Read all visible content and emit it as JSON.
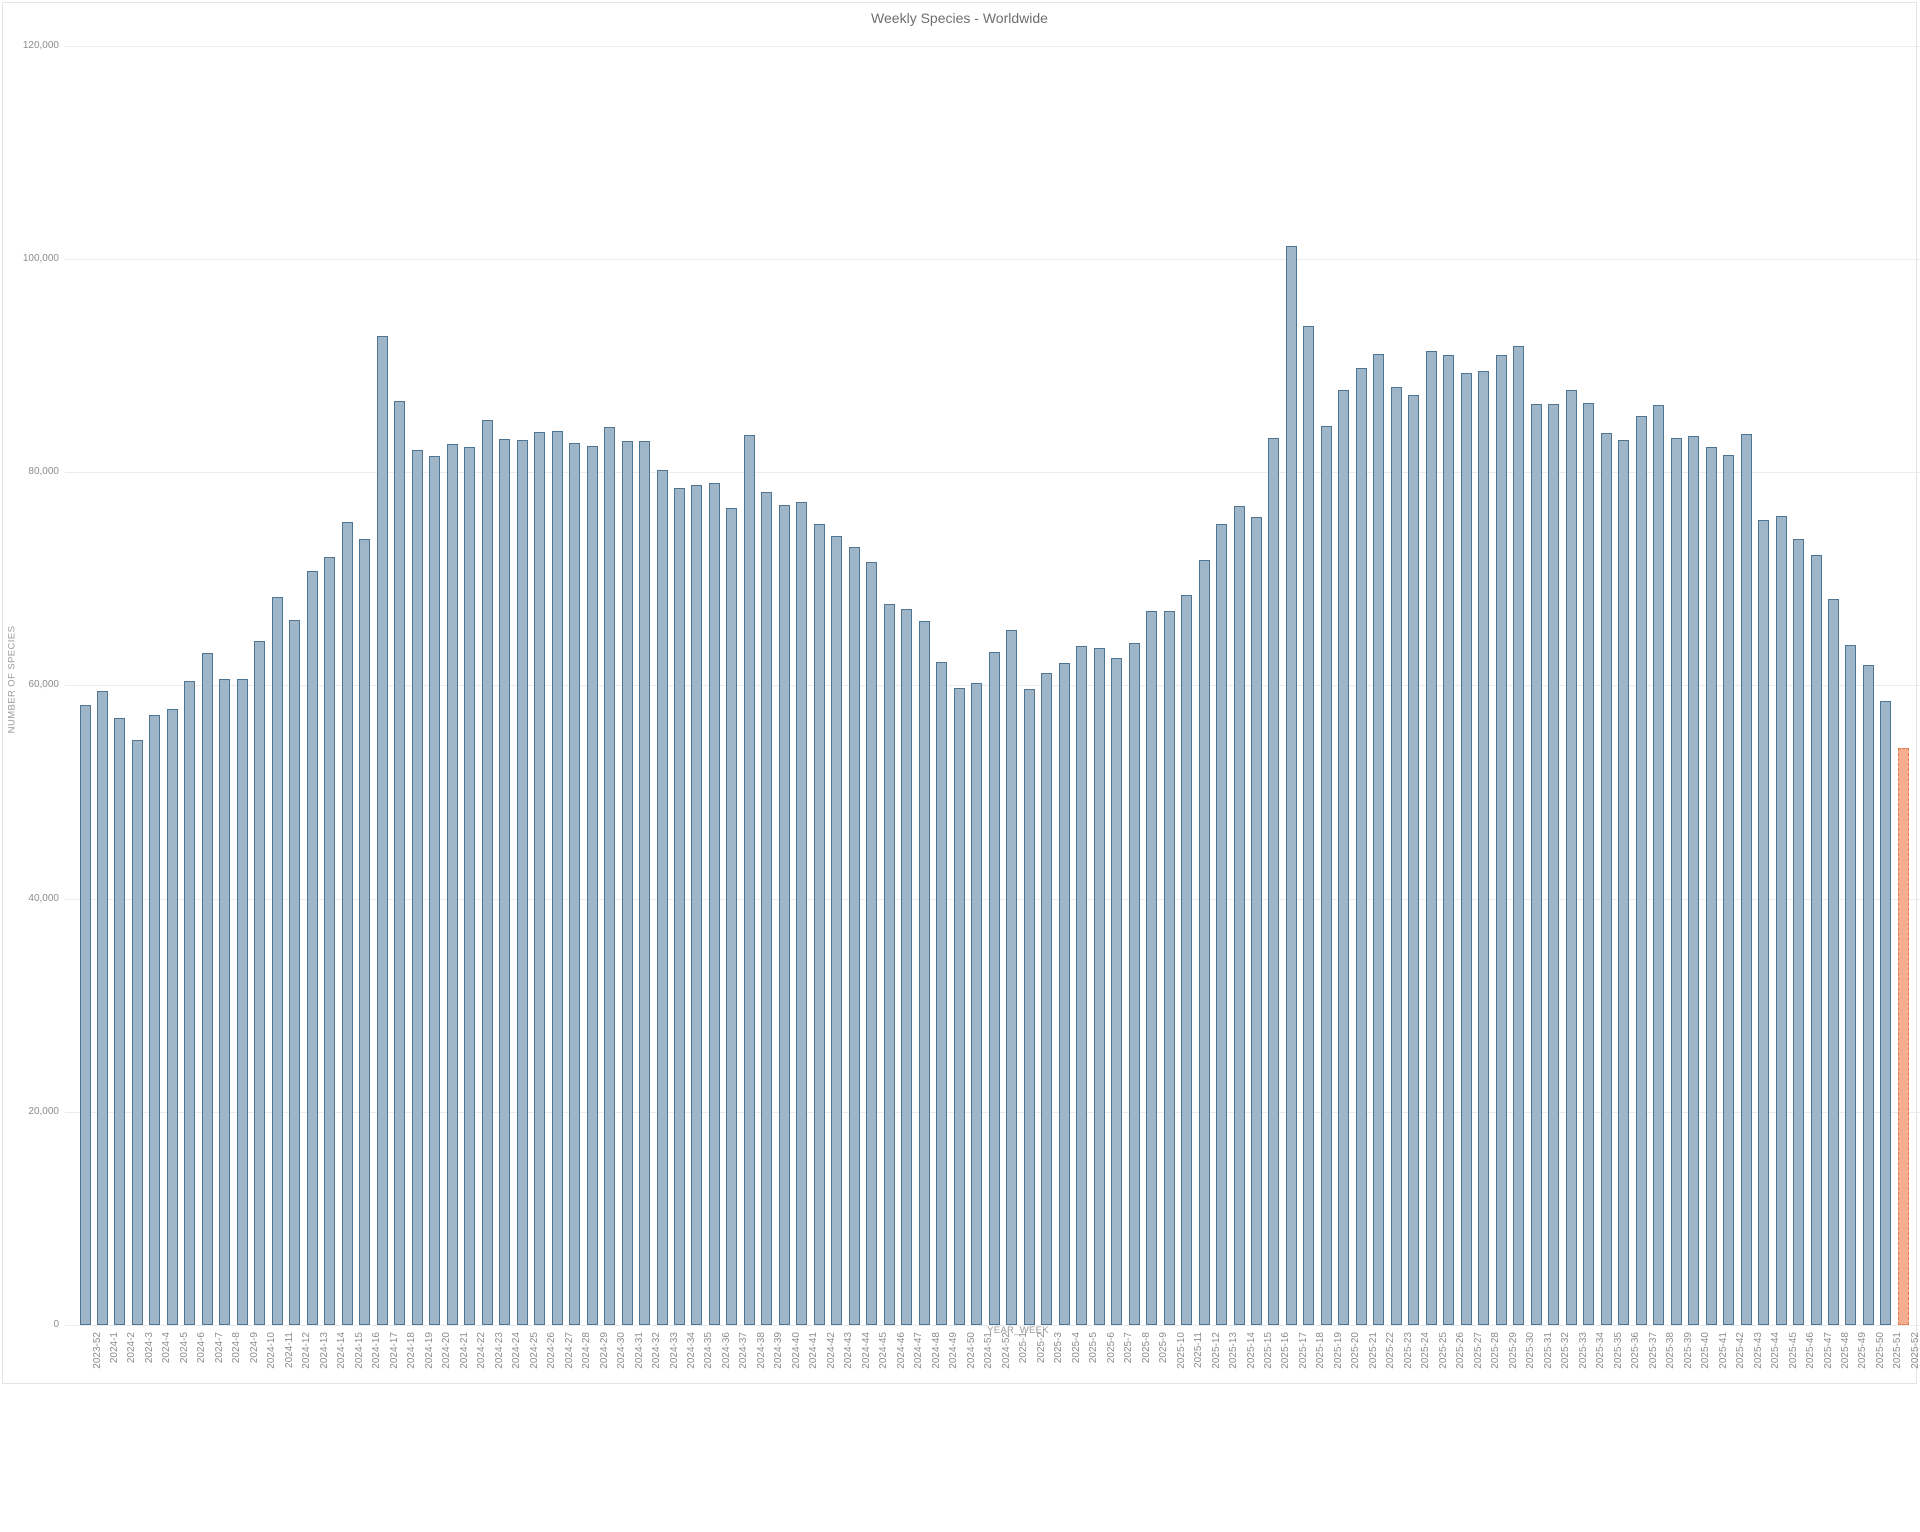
{
  "page": {
    "title": "Weekly Species - Worldwide"
  },
  "colors": {
    "bar_fill": "#9eb6c8",
    "bar_border": "#4e7592",
    "highlight_fill": "#f6ad90",
    "highlight_border": "#e0764b",
    "grid": "#ececec",
    "tick_text": "#8c8c8c",
    "axis_title_text": "#9a9a9a",
    "title_text": "#6f6f6f"
  },
  "chart_data": {
    "type": "bar",
    "title": "Weekly Species - Worldwide",
    "xlabel": "YEAR_WEEK",
    "ylabel": "NUMBER OF SPECIES",
    "ylim": [
      0,
      120000
    ],
    "grid": true,
    "legend": false,
    "yticks": [
      {
        "value": 0,
        "label": "0"
      },
      {
        "value": 20000,
        "label": "20,000"
      },
      {
        "value": 40000,
        "label": "40,000"
      },
      {
        "value": 60000,
        "label": "60,000"
      },
      {
        "value": 80000,
        "label": "80,000"
      },
      {
        "value": 100000,
        "label": "100,000"
      },
      {
        "value": 120000,
        "label": "120,000"
      }
    ],
    "highlight_index": 104,
    "categories": [
      "2023-52",
      "2024-1",
      "2024-2",
      "2024-3",
      "2024-4",
      "2024-5",
      "2024-6",
      "2024-7",
      "2024-8",
      "2024-9",
      "2024-10",
      "2024-11",
      "2024-12",
      "2024-13",
      "2024-14",
      "2024-15",
      "2024-16",
      "2024-17",
      "2024-18",
      "2024-19",
      "2024-20",
      "2024-21",
      "2024-22",
      "2024-23",
      "2024-24",
      "2024-25",
      "2024-26",
      "2024-27",
      "2024-28",
      "2024-29",
      "2024-30",
      "2024-31",
      "2024-32",
      "2024-33",
      "2024-34",
      "2024-35",
      "2024-36",
      "2024-37",
      "2024-38",
      "2024-39",
      "2024-40",
      "2024-41",
      "2024-42",
      "2024-43",
      "2024-44",
      "2024-45",
      "2024-46",
      "2024-47",
      "2024-48",
      "2024-49",
      "2024-50",
      "2024-51",
      "2024-52",
      "2025-1",
      "2025-2",
      "2025-3",
      "2025-4",
      "2025-5",
      "2025-6",
      "2025-7",
      "2025-8",
      "2025-9",
      "2025-10",
      "2025-11",
      "2025-12",
      "2025-13",
      "2025-14",
      "2025-15",
      "2025-16",
      "2025-17",
      "2025-18",
      "2025-19",
      "2025-20",
      "2025-21",
      "2025-22",
      "2025-23",
      "2025-24",
      "2025-25",
      "2025-26",
      "2025-27",
      "2025-28",
      "2025-29",
      "2025-30",
      "2025-31",
      "2025-32",
      "2025-33",
      "2025-34",
      "2025-35",
      "2025-36",
      "2025-37",
      "2025-38",
      "2025-39",
      "2025-40",
      "2025-41",
      "2025-42",
      "2025-43",
      "2025-44",
      "2025-45",
      "2025-46",
      "2025-47",
      "2025-48",
      "2025-49",
      "2025-50",
      "2025-51",
      "2025-52"
    ],
    "values": [
      58200,
      59500,
      56900,
      54900,
      57200,
      57800,
      60400,
      63000,
      60600,
      60600,
      64200,
      68300,
      66100,
      70700,
      72000,
      75300,
      73700,
      92800,
      86700,
      82100,
      81500,
      82600,
      82400,
      84900,
      83100,
      83000,
      83800,
      83900,
      82700,
      82500,
      84200,
      82900,
      82900,
      80200,
      78500,
      78800,
      79000,
      76600,
      83500,
      78100,
      76900,
      77200,
      75100,
      74000,
      73000,
      71600,
      67600,
      67200,
      66000,
      62200,
      59800,
      60200,
      63100,
      65200,
      59700,
      61200,
      62100,
      63700,
      63500,
      62600,
      64000,
      67000,
      67000,
      68500,
      71800,
      75100,
      76800,
      75800,
      83200,
      101200,
      93700,
      84300,
      87700,
      89800,
      91100,
      88000,
      87200,
      91400,
      91000,
      89300,
      89500,
      91000,
      91800,
      86400,
      86400,
      87700,
      86500,
      83700,
      83000,
      85300,
      86300,
      83200,
      83400,
      82400,
      81600,
      83600,
      75500,
      75900,
      73700,
      72200,
      68100,
      63800,
      61900,
      58500,
      54100
    ]
  }
}
